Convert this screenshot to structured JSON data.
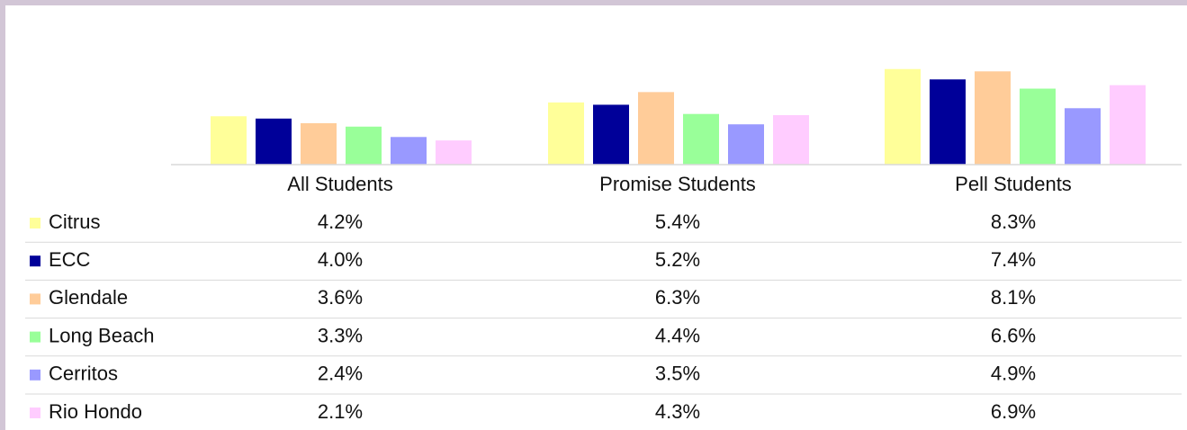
{
  "chart_data": {
    "type": "bar",
    "categories": [
      "All Students",
      "Promise Students",
      "Pell Students"
    ],
    "series": [
      {
        "name": "Citrus",
        "color": "#ffff99",
        "values": [
          4.2,
          5.4,
          8.3
        ],
        "value_labels": [
          "4.2%",
          "5.4%",
          "8.3%"
        ]
      },
      {
        "name": "ECC",
        "color": "#000099",
        "values": [
          4.0,
          5.2,
          7.4
        ],
        "value_labels": [
          "4.0%",
          "5.2%",
          "7.4%"
        ]
      },
      {
        "name": "Glendale",
        "color": "#ffcc99",
        "values": [
          3.6,
          6.3,
          8.1
        ],
        "value_labels": [
          "3.6%",
          "6.3%",
          "8.1%"
        ]
      },
      {
        "name": "Long Beach",
        "color": "#99ff99",
        "values": [
          3.3,
          4.4,
          6.6
        ],
        "value_labels": [
          "3.3%",
          "4.4%",
          "6.6%"
        ]
      },
      {
        "name": "Cerritos",
        "color": "#9999ff",
        "values": [
          2.4,
          3.5,
          4.9
        ],
        "value_labels": [
          "2.4%",
          "3.5%",
          "4.9%"
        ]
      },
      {
        "name": "Rio Hondo",
        "color": "#ffccff",
        "values": [
          2.1,
          4.3,
          6.9
        ],
        "value_labels": [
          "2.1%",
          "4.3%",
          "6.9%"
        ]
      }
    ],
    "ylim": [
      0,
      10
    ]
  }
}
